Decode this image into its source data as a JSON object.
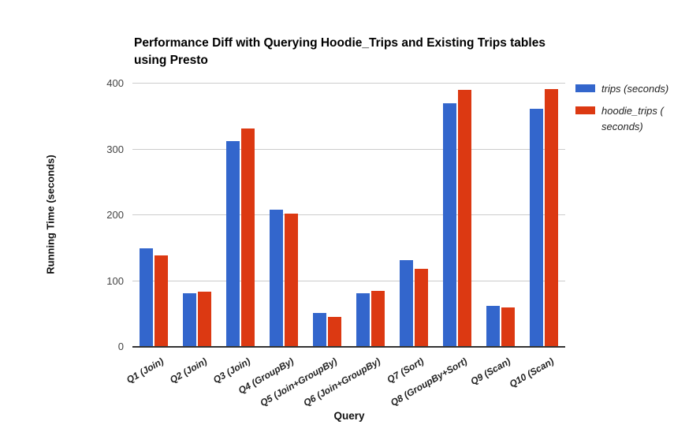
{
  "chart_data": {
    "type": "bar",
    "title": "Performance Diff with Querying Hoodie_Trips and Existing Trips tables using Presto",
    "title_lines": [
      "Performance Diff with Querying Hoodie_Trips and Existing Trips tables",
      "using Presto"
    ],
    "xlabel": "Query",
    "ylabel": "Running Time (seconds)",
    "categories": [
      "Q1 (Join)",
      "Q2 (Join)",
      "Q3 (Join)",
      "Q4 (GroupBy)",
      "Q5 (Join+GroupBy)",
      "Q6 (Join+GroupBy)",
      "Q7 (Sort)",
      "Q8 (GroupBy+Sort)",
      "Q9 (Scan)",
      "Q10 (Scan)"
    ],
    "series": [
      {
        "name": "trips (seconds)",
        "label_lines": [
          "trips (seconds)"
        ],
        "color": "#3366cc",
        "values": [
          150,
          81,
          313,
          208,
          52,
          82,
          132,
          370,
          62,
          362
        ]
      },
      {
        "name": "hoodie_trips (seconds)",
        "label_lines": [
          "hoodie_trips (",
          "seconds)"
        ],
        "color": "#dc3912",
        "values": [
          139,
          84,
          332,
          202,
          45,
          85,
          118,
          390,
          60,
          392
        ]
      }
    ],
    "ylim": [
      0,
      400
    ],
    "yticks": [
      0,
      100,
      200,
      300,
      400
    ],
    "grid": true,
    "legend_position": "right",
    "colors": {
      "gridline": "#cccccc",
      "baseline": "#333333",
      "tick_label": "#444444",
      "title": "#000000",
      "axis_label": "#111111",
      "category_label": "#222222",
      "legend_text": "#222222",
      "background": "#ffffff"
    }
  }
}
